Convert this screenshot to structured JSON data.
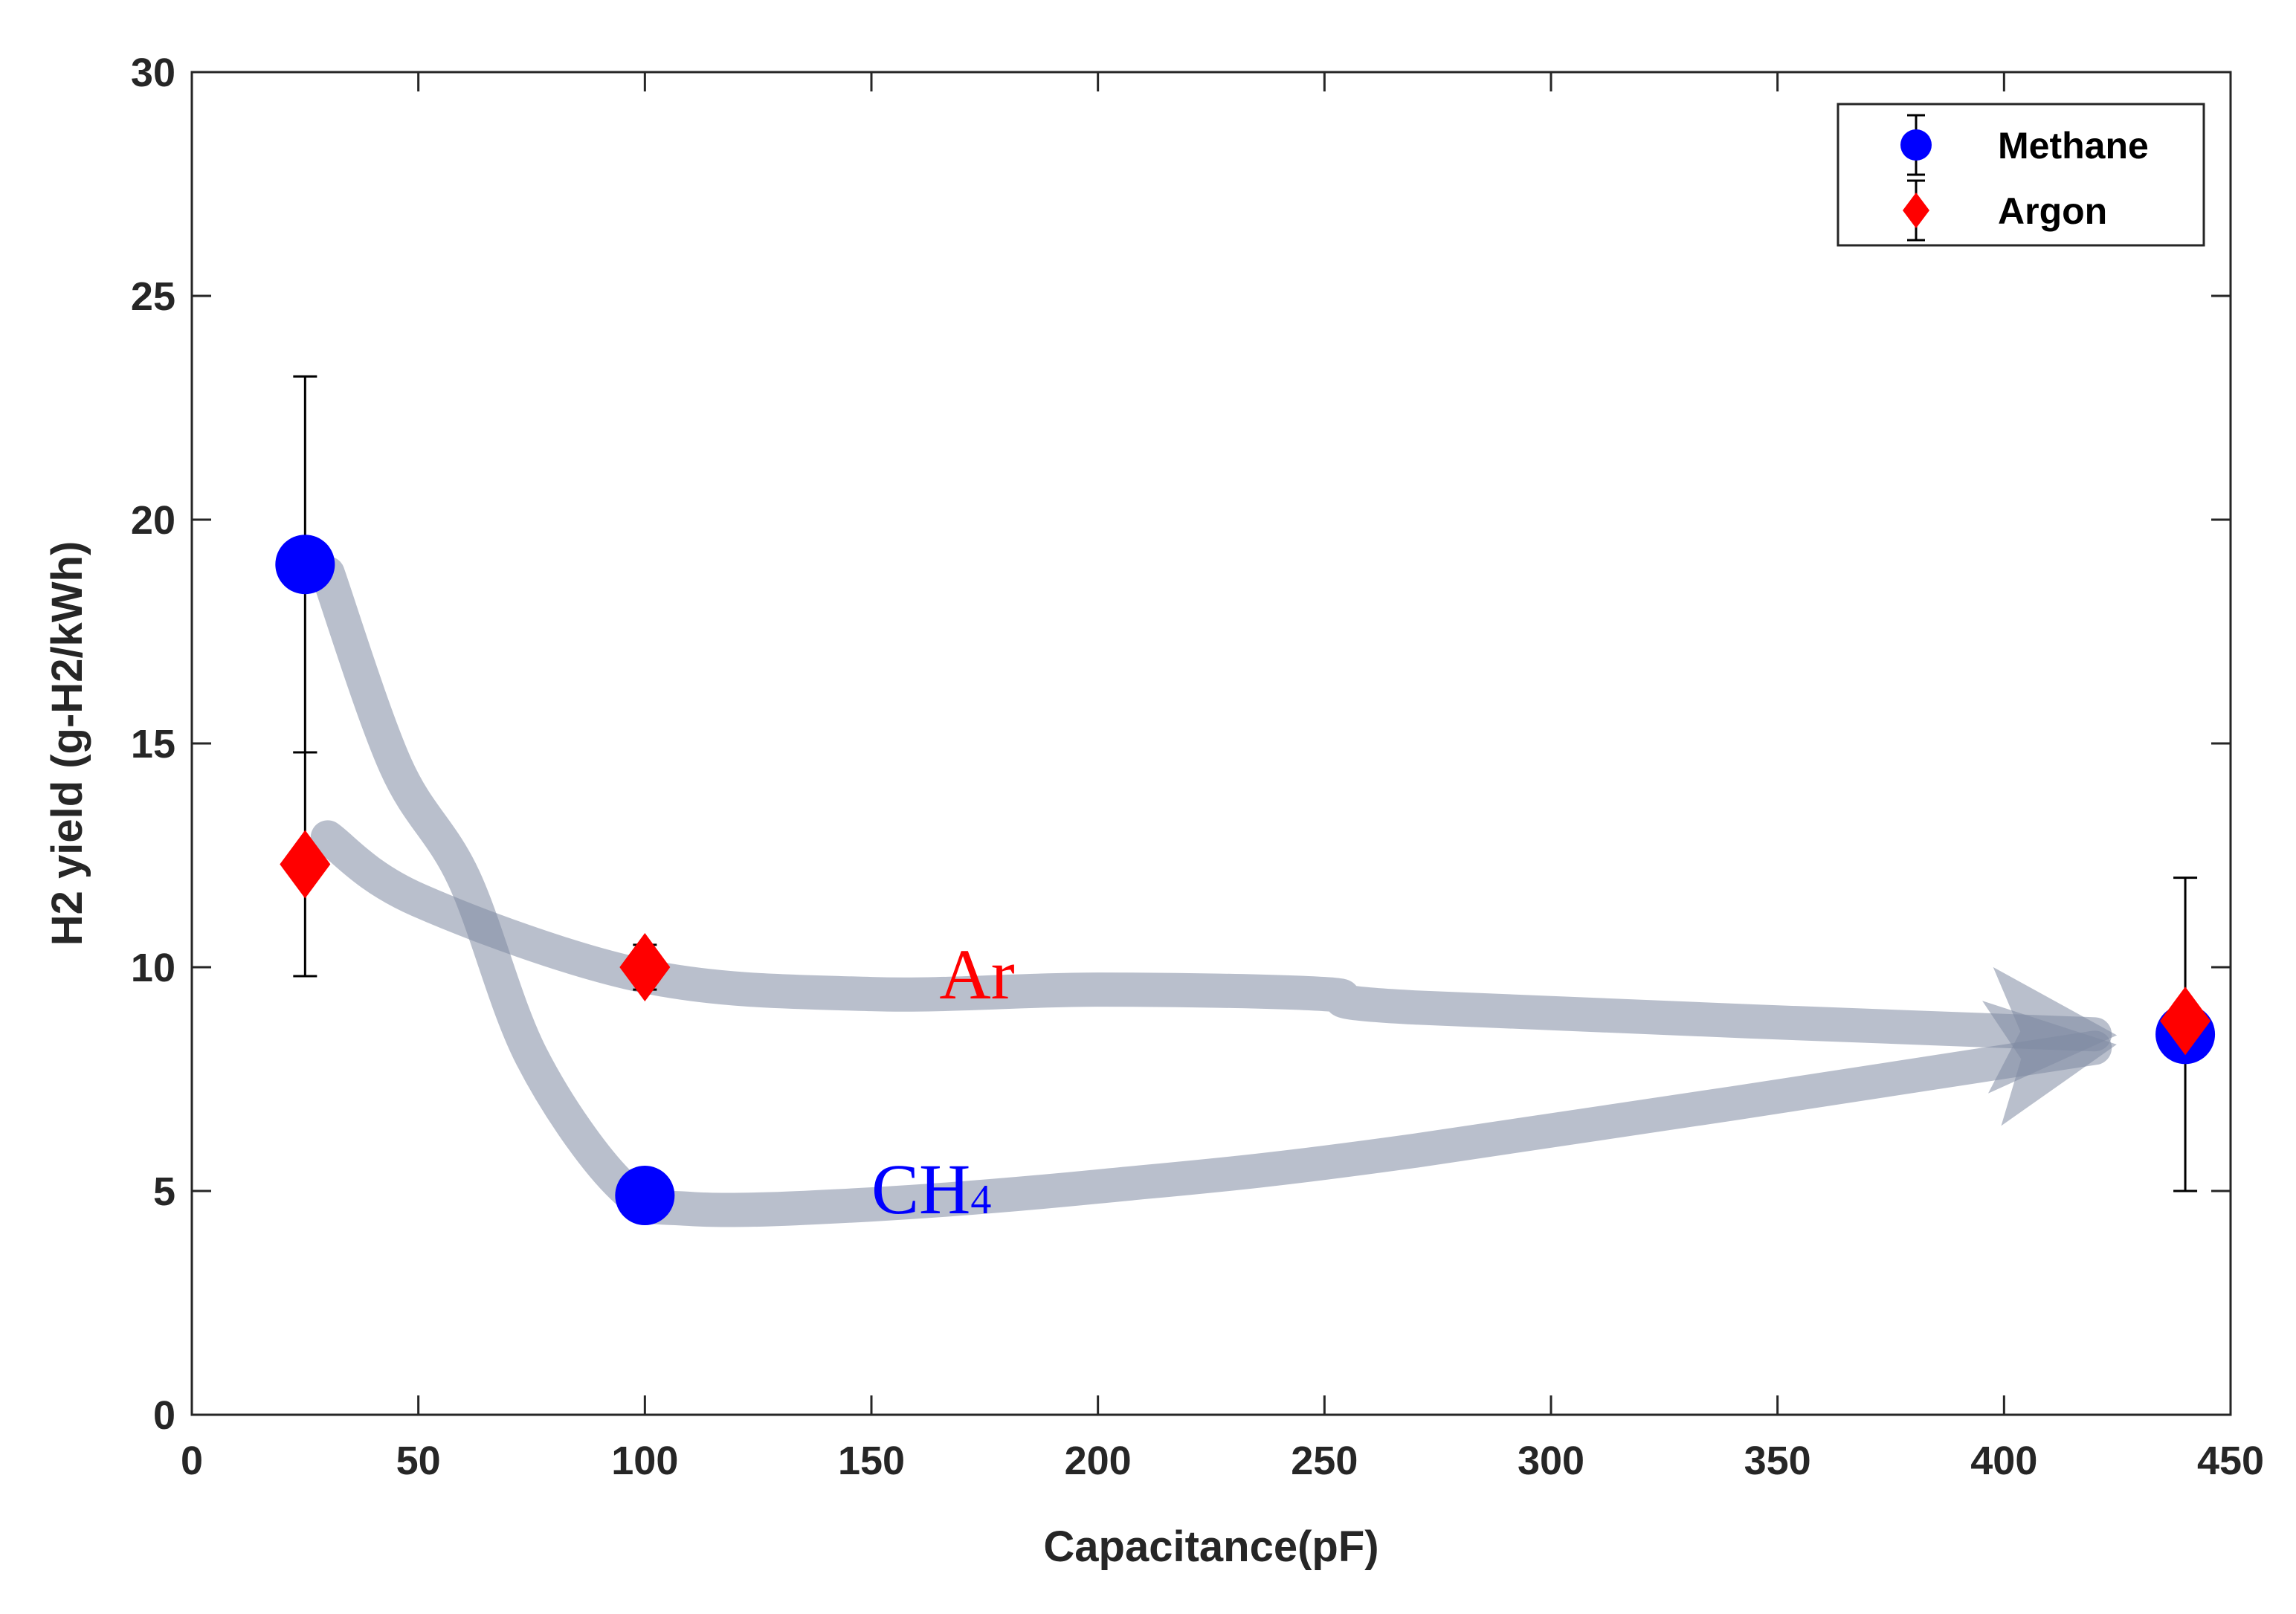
{
  "chart_data": {
    "type": "scatter",
    "xlabel": "Capacitance(pF)",
    "ylabel": "H2 yield (g-H2/kWh)",
    "xlim": [
      0,
      450
    ],
    "ylim": [
      0,
      30
    ],
    "xticks": [
      0,
      50,
      100,
      150,
      200,
      250,
      300,
      350,
      400,
      450
    ],
    "yticks": [
      0,
      5,
      10,
      15,
      20,
      25,
      30
    ],
    "grid": false,
    "legend_position": "top-right",
    "series": [
      {
        "name": "Methane",
        "marker": "circle",
        "color": "#0000ff",
        "points": [
          {
            "x": 25,
            "y": 19.0,
            "err_low": 4.2,
            "err_high": 4.2
          },
          {
            "x": 100,
            "y": 4.9,
            "err_low": 0.2,
            "err_high": 0.2
          },
          {
            "x": 440,
            "y": 8.5,
            "err_low": 3.5,
            "err_high": 3.5
          }
        ]
      },
      {
        "name": "Argon",
        "marker": "diamond",
        "color": "#ff0000",
        "points": [
          {
            "x": 25,
            "y": 12.3,
            "err_low": 2.5,
            "err_high": 2.5
          },
          {
            "x": 100,
            "y": 10.0,
            "err_low": 0.5,
            "err_high": 0.5
          },
          {
            "x": 440,
            "y": 8.8,
            "err_low": 0.3,
            "err_high": 0.3
          }
        ]
      }
    ],
    "trend_arrows": [
      {
        "name": "Ar",
        "label": "Ar",
        "label_color": "#ff0000",
        "label_at": {
          "x": 165,
          "y": 9.3
        },
        "path": [
          [
            30,
            12.9
          ],
          [
            50,
            11.5
          ],
          [
            100,
            9.8
          ],
          [
            150,
            9.4
          ],
          [
            200,
            9.5
          ],
          [
            250,
            9.4
          ],
          [
            270,
            9.1
          ],
          [
            420,
            8.5
          ]
        ]
      },
      {
        "name": "CH4",
        "label": "CH4",
        "label_color": "#0000ff",
        "label_at": {
          "x": 150,
          "y": 4.5
        },
        "path": [
          [
            30,
            18.8
          ],
          [
            45,
            14.5
          ],
          [
            60,
            12.0
          ],
          [
            75,
            8.0
          ],
          [
            95,
            5.1
          ],
          [
            110,
            4.6
          ],
          [
            150,
            4.7
          ],
          [
            200,
            5.1
          ],
          [
            270,
            5.9
          ],
          [
            420,
            8.2
          ]
        ]
      }
    ],
    "arrow_color": "#7f8ba2"
  }
}
